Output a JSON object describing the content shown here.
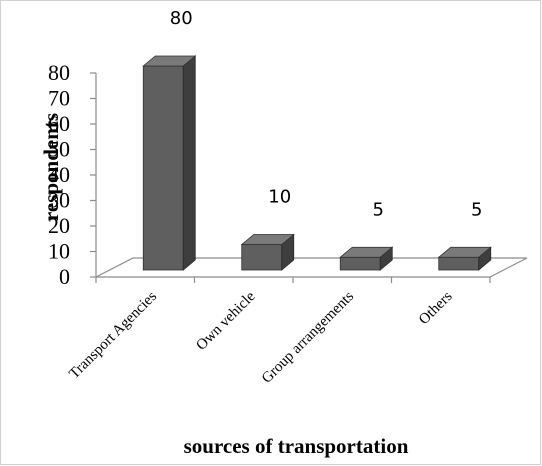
{
  "chart_data": {
    "type": "bar",
    "style": "3d-column",
    "categories": [
      "Transport Agencies",
      "Own vehicle",
      "Group arrangements",
      "Others"
    ],
    "values": [
      80,
      10,
      5,
      5
    ],
    "data_labels": [
      "80",
      "10",
      "5",
      "5"
    ],
    "y_ticks": [
      "0",
      "10",
      "20",
      "30",
      "40",
      "50",
      "60",
      "70",
      "80"
    ],
    "ylim": [
      0,
      80
    ],
    "xlabel": "sources of transportation",
    "ylabel": "respondents",
    "title": "",
    "legend": "none",
    "grid": false,
    "colors": {
      "bar_front": "#5f5f5f",
      "bar_top": "#7a7a7a",
      "bar_side": "#3e3e3e",
      "axis": "#8c8c8c"
    }
  }
}
